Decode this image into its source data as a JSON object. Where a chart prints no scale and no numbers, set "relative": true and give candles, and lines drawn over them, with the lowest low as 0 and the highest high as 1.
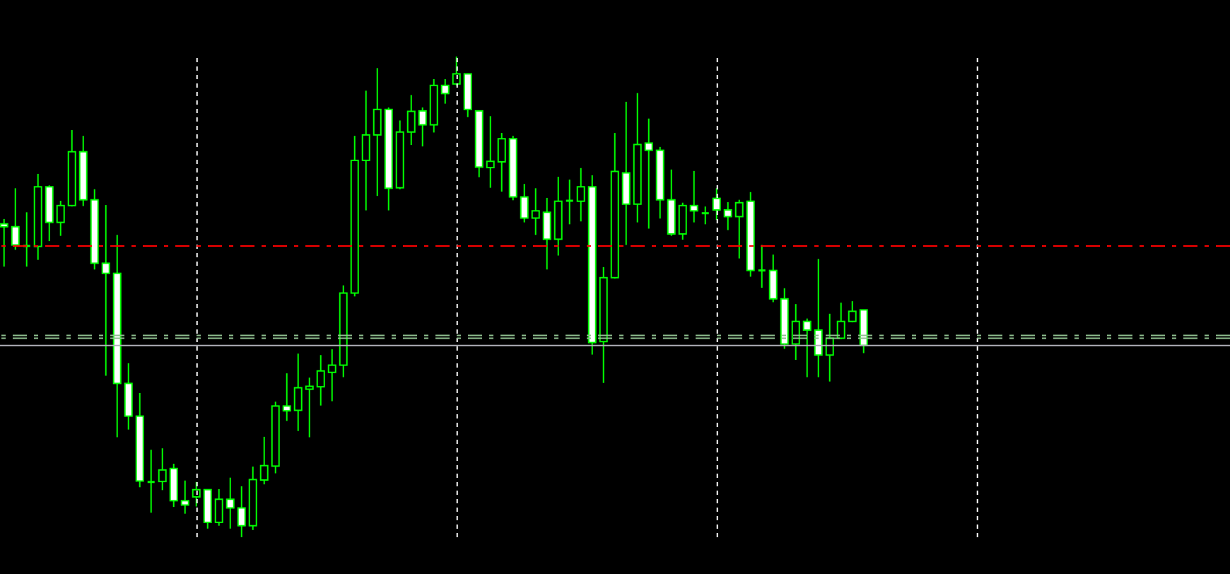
{
  "chart_data": {
    "type": "candlestick",
    "relative": true,
    "grid": "x",
    "color": "#00ff00",
    "categories": [
      null,
      null,
      null,
      null,
      null,
      null,
      null,
      null,
      null,
      null,
      null,
      null,
      null,
      null,
      null,
      null,
      null,
      null,
      null,
      null,
      null,
      null,
      null,
      null,
      null,
      null,
      null,
      null,
      null,
      null,
      null,
      null,
      null,
      null,
      null,
      null,
      null,
      null,
      null,
      null,
      null,
      null,
      null,
      null,
      null,
      null,
      null,
      null,
      null,
      null,
      null,
      null,
      null,
      null,
      null,
      null,
      null,
      null,
      null,
      null,
      null,
      null,
      null,
      null,
      null,
      null,
      null,
      null,
      null,
      null,
      null,
      null,
      null,
      null,
      null,
      null,
      null
    ],
    "ohlc": [
      [
        0.652,
        0.662,
        0.563,
        0.646
      ],
      [
        0.646,
        0.726,
        0.598,
        0.608
      ],
      [
        0.606,
        0.676,
        0.563,
        0.606
      ],
      [
        0.605,
        0.756,
        0.577,
        0.729
      ],
      [
        0.729,
        0.732,
        0.616,
        0.655
      ],
      [
        0.655,
        0.7,
        0.627,
        0.69
      ],
      [
        0.69,
        0.847,
        0.688,
        0.802
      ],
      [
        0.802,
        0.835,
        0.689,
        0.702
      ],
      [
        0.702,
        0.724,
        0.557,
        0.57
      ],
      [
        0.57,
        0.691,
        0.336,
        0.549
      ],
      [
        0.549,
        0.629,
        0.208,
        0.32
      ],
      [
        0.32,
        0.362,
        0.224,
        0.252
      ],
      [
        0.252,
        0.3,
        0.104,
        0.117
      ],
      [
        0.115,
        0.182,
        0.051,
        0.115
      ],
      [
        0.116,
        0.185,
        0.098,
        0.14
      ],
      [
        0.143,
        0.153,
        0.063,
        0.076
      ],
      [
        0.076,
        0.118,
        0.049,
        0.067
      ],
      [
        0.084,
        0.115,
        0.064,
        0.099
      ],
      [
        0.099,
        0.1,
        0.018,
        0.031
      ],
      [
        0.031,
        0.1,
        0.024,
        0.079
      ],
      [
        0.079,
        0.124,
        0.018,
        0.061
      ],
      [
        0.061,
        0.106,
        0,
        0.024
      ],
      [
        0.024,
        0.147,
        0.015,
        0.12
      ],
      [
        0.119,
        0.209,
        0.11,
        0.149
      ],
      [
        0.148,
        0.282,
        0.133,
        0.273
      ],
      [
        0.273,
        0.341,
        0.242,
        0.263
      ],
      [
        0.264,
        0.382,
        0.221,
        0.311
      ],
      [
        0.308,
        0.332,
        0.208,
        0.314
      ],
      [
        0.313,
        0.379,
        0.274,
        0.346
      ],
      [
        0.343,
        0.391,
        0.283,
        0.358
      ],
      [
        0.358,
        0.524,
        0.333,
        0.508
      ],
      [
        0.508,
        0.835,
        0.501,
        0.784
      ],
      [
        0.784,
        0.929,
        0.68,
        0.837
      ],
      [
        0.837,
        0.976,
        0.71,
        0.89
      ],
      [
        0.89,
        0.894,
        0.68,
        0.726
      ],
      [
        0.727,
        0.867,
        0.724,
        0.843
      ],
      [
        0.843,
        0.92,
        0.816,
        0.886
      ],
      [
        0.887,
        0.894,
        0.813,
        0.858
      ],
      [
        0.858,
        0.953,
        0.842,
        0.94
      ],
      [
        0.94,
        0.953,
        0.902,
        0.923
      ],
      [
        0.943,
        1,
        0.94,
        0.964
      ],
      [
        0.964,
        0.965,
        0.874,
        0.89
      ],
      [
        0.887,
        0.888,
        0.749,
        0.77
      ],
      [
        0.769,
        0.876,
        0.727,
        0.782
      ],
      [
        0.781,
        0.841,
        0.719,
        0.829
      ],
      [
        0.829,
        0.835,
        0.701,
        0.708
      ],
      [
        0.708,
        0.735,
        0.655,
        0.664
      ],
      [
        0.664,
        0.726,
        0.629,
        0.679
      ],
      [
        0.676,
        0.706,
        0.557,
        0.62
      ],
      [
        0.62,
        0.75,
        0.586,
        0.699
      ],
      [
        0.7,
        0.744,
        0.651,
        0.7
      ],
      [
        0.699,
        0.768,
        0.657,
        0.729
      ],
      [
        0.729,
        0.753,
        0.38,
        0.405
      ],
      [
        0.407,
        0.562,
        0.321,
        0.54
      ],
      [
        0.54,
        0.841,
        0.538,
        0.761
      ],
      [
        0.758,
        0.906,
        0.608,
        0.693
      ],
      [
        0.693,
        0.924,
        0.655,
        0.817
      ],
      [
        0.82,
        0.871,
        0.642,
        0.805
      ],
      [
        0.805,
        0.812,
        0.663,
        0.702
      ],
      [
        0.702,
        0.765,
        0.627,
        0.631
      ],
      [
        0.631,
        0.696,
        0.619,
        0.69
      ],
      [
        0.69,
        0.762,
        0.655,
        0.679
      ],
      [
        0.674,
        0.688,
        0.651,
        0.674
      ],
      [
        0.705,
        0.726,
        0.66,
        0.681
      ],
      [
        0.681,
        0.697,
        0.639,
        0.667
      ],
      [
        0.667,
        0.702,
        0.58,
        0.696
      ],
      [
        0.699,
        0.718,
        0.542,
        0.555
      ],
      [
        0.555,
        0.608,
        0.519,
        0.555
      ],
      [
        0.555,
        0.588,
        0.489,
        0.496
      ],
      [
        0.496,
        0.518,
        0.392,
        0.402
      ],
      [
        0.402,
        0.485,
        0.369,
        0.449
      ],
      [
        0.449,
        0.455,
        0.333,
        0.431
      ],
      [
        0.431,
        0.579,
        0.333,
        0.379
      ],
      [
        0.379,
        0.465,
        0.324,
        0.414
      ],
      [
        0.414,
        0.488,
        0.412,
        0.449
      ],
      [
        0.449,
        0.491,
        0.447,
        0.47
      ],
      [
        0.473,
        0.473,
        0.383,
        0.399
      ]
    ],
    "ref_lines": [
      {
        "axis": "y",
        "value": 0.606,
        "color": "#ff0000",
        "line_style": "dashed"
      },
      {
        "axis": "y",
        "value": 0.42,
        "color": "#8fbf8f",
        "line_style": "dashed"
      },
      {
        "axis": "y",
        "value": 0.414,
        "color": "#8fbf8f",
        "line_style": "dashed"
      },
      {
        "axis": "y",
        "value": 0.399,
        "color": "#b0b0b8",
        "line_style": "solid"
      }
    ]
  }
}
